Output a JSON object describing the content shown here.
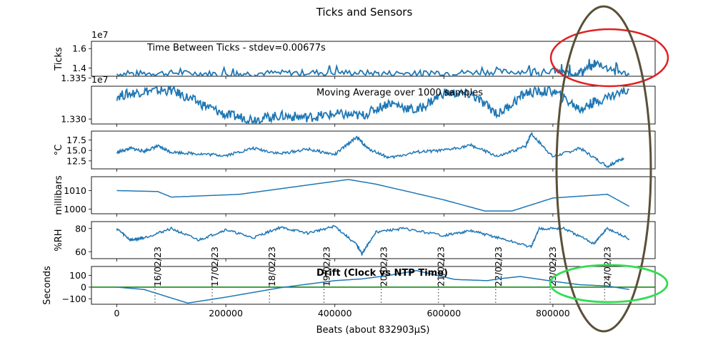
{
  "figure": {
    "title": "Ticks and Sensors",
    "xlabel": "Beats (about 832903µS)",
    "x_ticks": [
      "0",
      "200000",
      "400000",
      "600000",
      "800000"
    ],
    "line_color": "#1f77b4",
    "zero_line_color": "#008000",
    "annotation_colors": {
      "top_ellipse": "#e02020",
      "tall_ellipse": "#5a5038",
      "bottom_ellipse": "#30dd50"
    }
  },
  "chart_data": [
    {
      "type": "line",
      "ylabel": "Ticks",
      "offset_label": "1e7",
      "annotation": "Time Between Ticks - stdev=0.00677s",
      "y_ticks": [
        "1.4",
        "1.6"
      ],
      "ylim": [
        13150000,
        16750000
      ],
      "series": [
        {
          "x": [
            0,
            100000,
            200000,
            300000,
            400000,
            500000,
            600000,
            700000,
            800000,
            840000,
            880000,
            940000
          ],
          "values": [
            13400000,
            13500000,
            13400000,
            13500000,
            13550000,
            13450000,
            13500000,
            13600000,
            13700000,
            13400000,
            14400000,
            13300000
          ]
        }
      ]
    },
    {
      "type": "line",
      "ylabel": "",
      "offset_label": "1e7",
      "annotation": "Moving Average over 1000 samples",
      "y_ticks": [
        "1.330",
        "1.335"
      ],
      "ylim": [
        13294000,
        13340000
      ],
      "series": [
        {
          "x": [
            0,
            50000,
            100000,
            150000,
            200000,
            250000,
            300000,
            350000,
            400000,
            450000,
            500000,
            550000,
            600000,
            650000,
            700000,
            750000,
            800000,
            850000,
            880000,
            940000
          ],
          "values": [
            13328000,
            13334000,
            13335000,
            13320000,
            13305000,
            13300000,
            13304000,
            13302000,
            13306000,
            13304000,
            13320000,
            13310000,
            13332000,
            13330000,
            13306000,
            13332000,
            13334000,
            13312000,
            13322000,
            13336000
          ]
        }
      ]
    },
    {
      "type": "line",
      "ylabel": "°C",
      "annotation": "",
      "y_ticks": [
        "12.5",
        "15.0",
        "17.5"
      ],
      "ylim": [
        10.6,
        19.6
      ],
      "series": [
        {
          "x": [
            0,
            25000,
            50000,
            75000,
            100000,
            150000,
            200000,
            250000,
            300000,
            350000,
            400000,
            440000,
            460000,
            500000,
            550000,
            600000,
            650000,
            700000,
            750000,
            760000,
            800000,
            850000,
            900000,
            930000
          ],
          "values": [
            14.5,
            15.5,
            14.8,
            16.0,
            14.6,
            14.2,
            13.8,
            15.5,
            14.2,
            15.3,
            14.0,
            18.2,
            15.5,
            13.2,
            14.6,
            15.0,
            16.2,
            13.5,
            16.0,
            19.0,
            13.5,
            15.5,
            11.2,
            13.2
          ]
        }
      ]
    },
    {
      "type": "line",
      "ylabel": "millibars",
      "annotation": "",
      "y_ticks": [
        "1000",
        "1010"
      ],
      "ylim": [
        997.5,
        1017.5
      ],
      "series": [
        {
          "x": [
            0,
            75000,
            100000,
            225000,
            275000,
            375000,
            425000,
            475000,
            600000,
            675000,
            725000,
            800000,
            900000,
            940000
          ],
          "values": [
            1010,
            1009.5,
            1006.5,
            1008,
            1010,
            1014,
            1016,
            1013.5,
            1005,
            999,
            999,
            1006,
            1008,
            1001.5
          ]
        }
      ]
    },
    {
      "type": "line",
      "ylabel": "%RH",
      "annotation": "",
      "y_ticks": [
        "60",
        "80"
      ],
      "ylim": [
        54,
        86
      ],
      "series": [
        {
          "x": [
            0,
            25000,
            50000,
            100000,
            150000,
            200000,
            250000,
            300000,
            350000,
            400000,
            440000,
            450000,
            475000,
            525000,
            600000,
            650000,
            700000,
            760000,
            775000,
            820000,
            875000,
            900000,
            940000
          ],
          "values": [
            80,
            70,
            72,
            80,
            70,
            79,
            72,
            81,
            76,
            82,
            66,
            58,
            77,
            80,
            74,
            78,
            72,
            64,
            80,
            80,
            67,
            80,
            71
          ]
        }
      ]
    },
    {
      "type": "line",
      "ylabel": "Seconds",
      "annotation": "Drift (Clock vs NTP Time)",
      "y_ticks": [
        "−100",
        "0",
        "100"
      ],
      "ylim": [
        -145,
        175
      ],
      "date_markers": [
        {
          "x": 70000,
          "label": "16/02/23"
        },
        {
          "x": 175000,
          "label": "17/02/23"
        },
        {
          "x": 280000,
          "label": "18/02/23"
        },
        {
          "x": 380000,
          "label": "19/02/23"
        },
        {
          "x": 485000,
          "label": "20/02/23"
        },
        {
          "x": 590000,
          "label": "21/02/23"
        },
        {
          "x": 695000,
          "label": "22/02/23"
        },
        {
          "x": 795000,
          "label": "23/02/23"
        },
        {
          "x": 895000,
          "label": "24/02/23"
        }
      ],
      "series": [
        {
          "x": [
            0,
            50000,
            130000,
            200000,
            300000,
            400000,
            450000,
            500000,
            550000,
            620000,
            680000,
            700000,
            740000,
            800000,
            850000,
            900000,
            940000
          ],
          "values": [
            0,
            -20,
            -135,
            -85,
            -5,
            55,
            70,
            100,
            140,
            65,
            55,
            70,
            90,
            50,
            20,
            10,
            -20
          ]
        }
      ]
    }
  ]
}
